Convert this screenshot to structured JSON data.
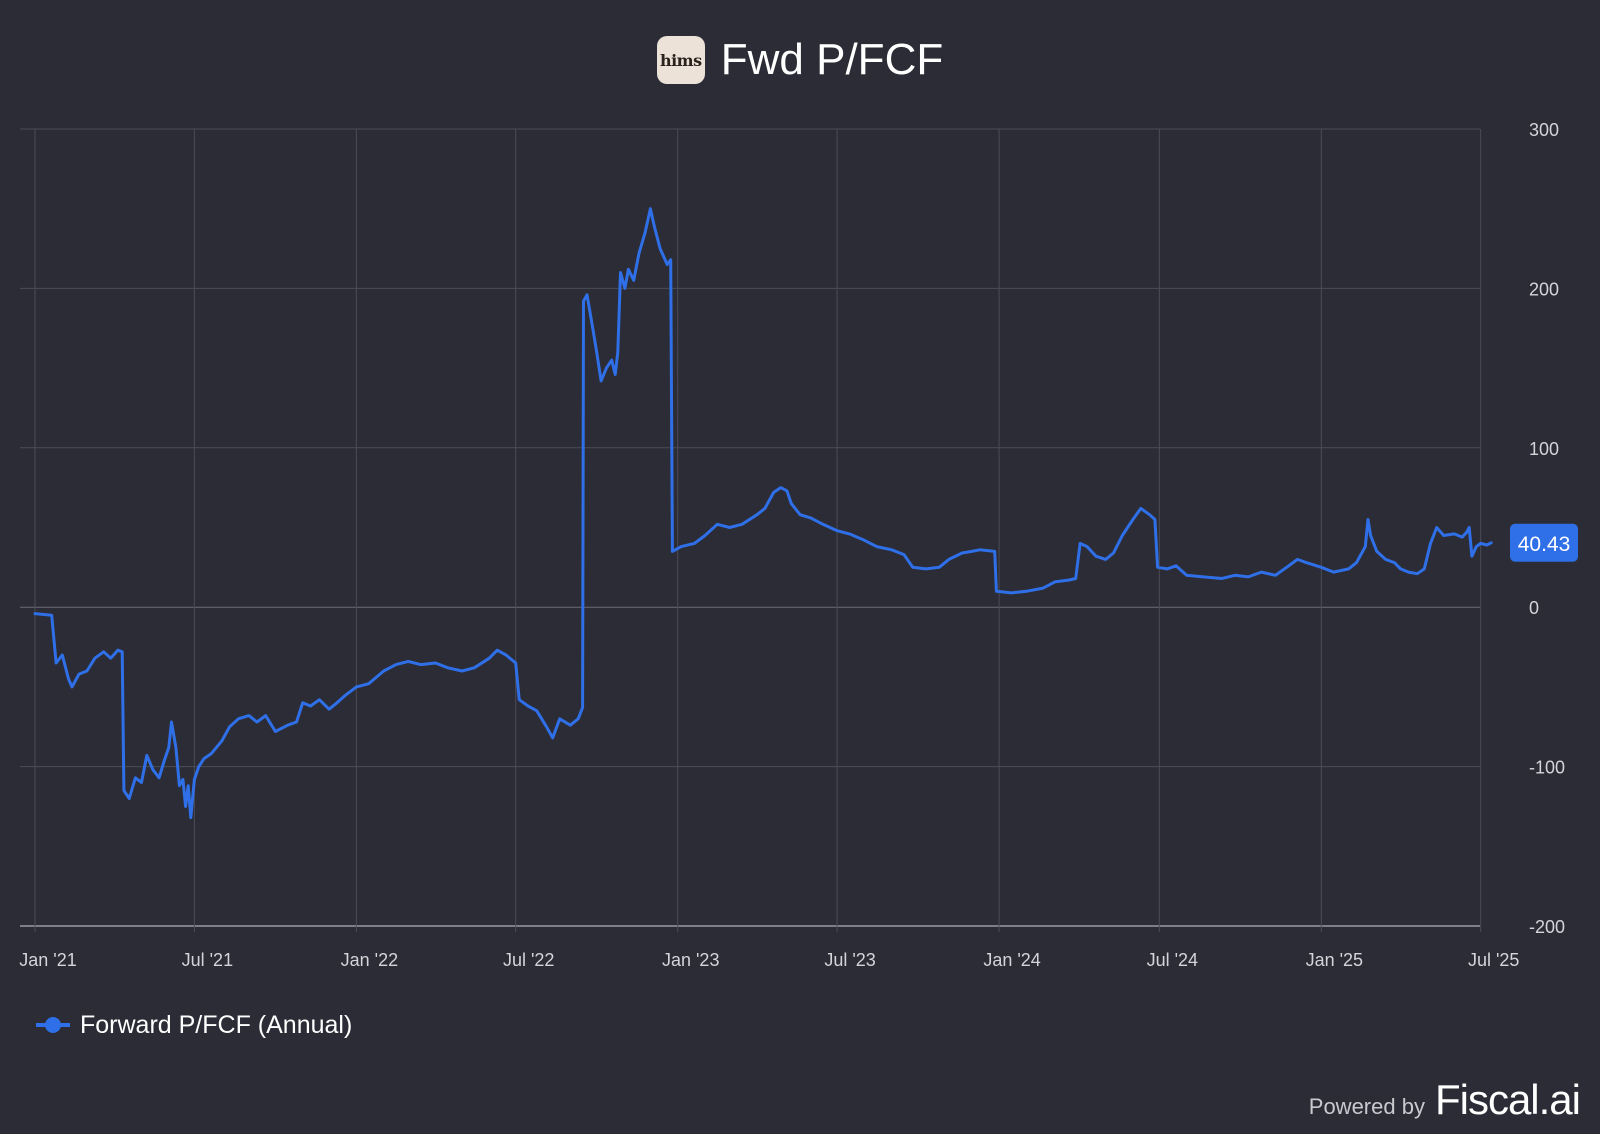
{
  "header": {
    "logo_text": "hims",
    "title": "Fwd P/FCF"
  },
  "footer": {
    "powered_by": "Powered by",
    "brand": "Fiscal.ai"
  },
  "colors": {
    "background": "#2b2c35",
    "series": "#2f6fe8",
    "grid": "#4b4c57",
    "zero_line": "#6b6c77",
    "axis_text": "#d4d4da"
  },
  "chart_data": {
    "type": "line",
    "title": "Fwd P/FCF",
    "y_axis_side": "right",
    "ylim": [
      -200,
      300
    ],
    "yticks": [
      300,
      200,
      100,
      0,
      -100,
      -200
    ],
    "xlim": [
      "2021-01-01",
      "2025-07-15"
    ],
    "xticks": [
      {
        "date": "2021-01-01",
        "label": "Jan '21"
      },
      {
        "date": "2021-07-01",
        "label": "Jul '21"
      },
      {
        "date": "2022-01-01",
        "label": "Jan '22"
      },
      {
        "date": "2022-07-01",
        "label": "Jul '22"
      },
      {
        "date": "2023-01-01",
        "label": "Jan '23"
      },
      {
        "date": "2023-07-01",
        "label": "Jul '23"
      },
      {
        "date": "2024-01-01",
        "label": "Jan '24"
      },
      {
        "date": "2024-07-01",
        "label": "Jul '24"
      },
      {
        "date": "2025-01-01",
        "label": "Jan '25"
      },
      {
        "date": "2025-07-01",
        "label": "Jul '25"
      }
    ],
    "grid": true,
    "legend_position": "bottom-left",
    "last_value_label": "40.43",
    "series": [
      {
        "name": "Forward P/FCF (Annual)",
        "color": "#2f6fe8",
        "points": [
          [
            "2021-01-01",
            -4
          ],
          [
            "2021-01-20",
            -5
          ],
          [
            "2021-01-25",
            -35
          ],
          [
            "2021-02-01",
            -30
          ],
          [
            "2021-02-08",
            -45
          ],
          [
            "2021-02-12",
            -50
          ],
          [
            "2021-02-20",
            -42
          ],
          [
            "2021-03-01",
            -40
          ],
          [
            "2021-03-10",
            -32
          ],
          [
            "2021-03-20",
            -28
          ],
          [
            "2021-03-28",
            -32
          ],
          [
            "2021-04-05",
            -27
          ],
          [
            "2021-04-10",
            -28
          ],
          [
            "2021-04-12",
            -115
          ],
          [
            "2021-04-18",
            -120
          ],
          [
            "2021-04-25",
            -107
          ],
          [
            "2021-05-02",
            -110
          ],
          [
            "2021-05-08",
            -93
          ],
          [
            "2021-05-15",
            -102
          ],
          [
            "2021-05-22",
            -107
          ],
          [
            "2021-05-28",
            -96
          ],
          [
            "2021-06-02",
            -88
          ],
          [
            "2021-06-05",
            -72
          ],
          [
            "2021-06-10",
            -88
          ],
          [
            "2021-06-14",
            -112
          ],
          [
            "2021-06-18",
            -108
          ],
          [
            "2021-06-21",
            -125
          ],
          [
            "2021-06-24",
            -112
          ],
          [
            "2021-06-27",
            -132
          ],
          [
            "2021-07-01",
            -108
          ],
          [
            "2021-07-06",
            -100
          ],
          [
            "2021-07-12",
            -95
          ],
          [
            "2021-07-20",
            -92
          ],
          [
            "2021-08-01",
            -84
          ],
          [
            "2021-08-10",
            -75
          ],
          [
            "2021-08-20",
            -70
          ],
          [
            "2021-09-01",
            -68
          ],
          [
            "2021-09-10",
            -72
          ],
          [
            "2021-09-20",
            -68
          ],
          [
            "2021-10-01",
            -78
          ],
          [
            "2021-10-15",
            -74
          ],
          [
            "2021-10-25",
            -72
          ],
          [
            "2021-11-01",
            -60
          ],
          [
            "2021-11-10",
            -62
          ],
          [
            "2021-11-20",
            -58
          ],
          [
            "2021-12-01",
            -64
          ],
          [
            "2021-12-10",
            -60
          ],
          [
            "2021-12-20",
            -55
          ],
          [
            "2022-01-01",
            -50
          ],
          [
            "2022-01-15",
            -48
          ],
          [
            "2022-02-01",
            -40
          ],
          [
            "2022-02-15",
            -36
          ],
          [
            "2022-03-01",
            -34
          ],
          [
            "2022-03-15",
            -36
          ],
          [
            "2022-04-01",
            -35
          ],
          [
            "2022-04-15",
            -38
          ],
          [
            "2022-05-01",
            -40
          ],
          [
            "2022-05-15",
            -38
          ],
          [
            "2022-06-01",
            -32
          ],
          [
            "2022-06-10",
            -27
          ],
          [
            "2022-06-20",
            -30
          ],
          [
            "2022-07-01",
            -35
          ],
          [
            "2022-07-05",
            -58
          ],
          [
            "2022-07-15",
            -62
          ],
          [
            "2022-07-25",
            -65
          ],
          [
            "2022-08-05",
            -75
          ],
          [
            "2022-08-12",
            -82
          ],
          [
            "2022-08-20",
            -70
          ],
          [
            "2022-09-01",
            -74
          ],
          [
            "2022-09-10",
            -70
          ],
          [
            "2022-09-15",
            -63
          ],
          [
            "2022-09-16",
            192
          ],
          [
            "2022-09-20",
            196
          ],
          [
            "2022-09-25",
            180
          ],
          [
            "2022-10-01",
            160
          ],
          [
            "2022-10-06",
            142
          ],
          [
            "2022-10-12",
            150
          ],
          [
            "2022-10-18",
            155
          ],
          [
            "2022-10-22",
            146
          ],
          [
            "2022-10-25",
            160
          ],
          [
            "2022-10-28",
            210
          ],
          [
            "2022-11-02",
            200
          ],
          [
            "2022-11-06",
            212
          ],
          [
            "2022-11-12",
            205
          ],
          [
            "2022-11-18",
            222
          ],
          [
            "2022-11-25",
            235
          ],
          [
            "2022-12-01",
            250
          ],
          [
            "2022-12-05",
            240
          ],
          [
            "2022-12-12",
            225
          ],
          [
            "2022-12-20",
            215
          ],
          [
            "2022-12-24",
            218
          ],
          [
            "2022-12-26",
            35
          ],
          [
            "2023-01-05",
            38
          ],
          [
            "2023-01-20",
            40
          ],
          [
            "2023-02-01",
            45
          ],
          [
            "2023-02-15",
            52
          ],
          [
            "2023-03-01",
            50
          ],
          [
            "2023-03-15",
            52
          ],
          [
            "2023-04-01",
            58
          ],
          [
            "2023-04-10",
            62
          ],
          [
            "2023-04-20",
            72
          ],
          [
            "2023-04-28",
            75
          ],
          [
            "2023-05-05",
            73
          ],
          [
            "2023-05-10",
            65
          ],
          [
            "2023-05-20",
            58
          ],
          [
            "2023-06-01",
            56
          ],
          [
            "2023-06-15",
            52
          ],
          [
            "2023-07-01",
            48
          ],
          [
            "2023-07-15",
            46
          ],
          [
            "2023-08-01",
            42
          ],
          [
            "2023-08-15",
            38
          ],
          [
            "2023-09-01",
            36
          ],
          [
            "2023-09-15",
            33
          ],
          [
            "2023-09-25",
            25
          ],
          [
            "2023-10-10",
            24
          ],
          [
            "2023-10-25",
            25
          ],
          [
            "2023-11-05",
            30
          ],
          [
            "2023-11-20",
            34
          ],
          [
            "2023-12-01",
            35
          ],
          [
            "2023-12-10",
            36
          ],
          [
            "2023-12-27",
            35
          ],
          [
            "2023-12-29",
            10
          ],
          [
            "2024-01-15",
            9
          ],
          [
            "2024-02-01",
            10
          ],
          [
            "2024-02-20",
            12
          ],
          [
            "2024-03-05",
            16
          ],
          [
            "2024-03-20",
            17
          ],
          [
            "2024-03-28",
            18
          ],
          [
            "2024-04-02",
            40
          ],
          [
            "2024-04-10",
            38
          ],
          [
            "2024-04-20",
            32
          ],
          [
            "2024-05-01",
            30
          ],
          [
            "2024-05-10",
            34
          ],
          [
            "2024-05-20",
            45
          ],
          [
            "2024-06-01",
            55
          ],
          [
            "2024-06-10",
            62
          ],
          [
            "2024-06-20",
            58
          ],
          [
            "2024-06-26",
            55
          ],
          [
            "2024-06-29",
            25
          ],
          [
            "2024-07-10",
            24
          ],
          [
            "2024-07-20",
            26
          ],
          [
            "2024-08-01",
            20
          ],
          [
            "2024-08-20",
            19
          ],
          [
            "2024-09-10",
            18
          ],
          [
            "2024-09-25",
            20
          ],
          [
            "2024-10-10",
            19
          ],
          [
            "2024-10-25",
            22
          ],
          [
            "2024-11-10",
            20
          ],
          [
            "2024-11-25",
            26
          ],
          [
            "2024-12-05",
            30
          ],
          [
            "2024-12-15",
            28
          ],
          [
            "2025-01-01",
            25
          ],
          [
            "2025-01-15",
            22
          ],
          [
            "2025-02-01",
            24
          ],
          [
            "2025-02-10",
            28
          ],
          [
            "2025-02-20",
            38
          ],
          [
            "2025-02-23",
            55
          ],
          [
            "2025-02-26",
            45
          ],
          [
            "2025-03-05",
            35
          ],
          [
            "2025-03-15",
            30
          ],
          [
            "2025-03-25",
            28
          ],
          [
            "2025-04-01",
            24
          ],
          [
            "2025-04-10",
            22
          ],
          [
            "2025-04-20",
            21
          ],
          [
            "2025-04-28",
            24
          ],
          [
            "2025-05-05",
            40
          ],
          [
            "2025-05-12",
            50
          ],
          [
            "2025-05-20",
            45
          ],
          [
            "2025-06-01",
            46
          ],
          [
            "2025-06-10",
            44
          ],
          [
            "2025-06-15",
            47
          ],
          [
            "2025-06-18",
            50
          ],
          [
            "2025-06-21",
            32
          ],
          [
            "2025-06-26",
            38
          ],
          [
            "2025-07-01",
            40
          ],
          [
            "2025-07-08",
            39
          ],
          [
            "2025-07-13",
            40.43
          ]
        ]
      }
    ]
  }
}
